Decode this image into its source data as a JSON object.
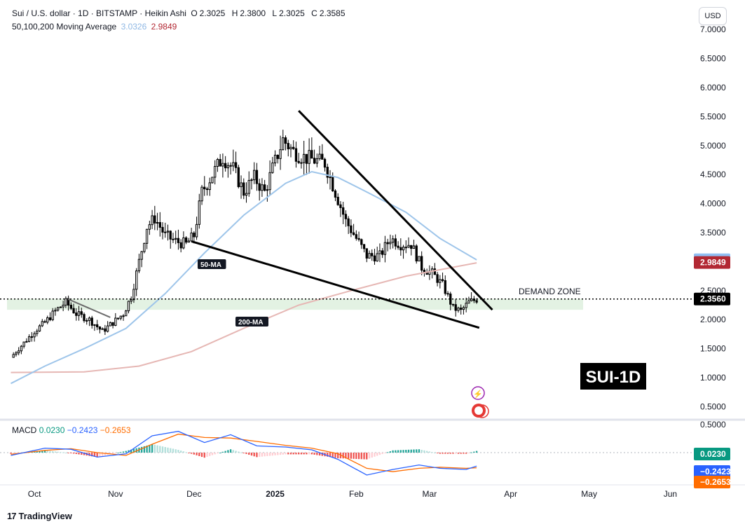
{
  "header": {
    "symbol": "Sui / U.S. dollar · 1D · BITSTAMP · Heikin Ashi",
    "open_label": "O",
    "open": "2.3025",
    "high_label": "H",
    "high": "2.3800",
    "low_label": "L",
    "low": "2.3025",
    "close_label": "C",
    "close": "2.3585",
    "ma_label": "50,100,200 Moving Average",
    "ma_value_1": "3.0326",
    "ma_value_2": "2.9849"
  },
  "currency_button": "USD",
  "macd_legend": {
    "label": "MACD",
    "v1": "0.0230",
    "v2": "−0.2423",
    "v3": "−0.2653"
  },
  "footer": {
    "brand": "TradingView",
    "icon": "tradingview-logo-icon"
  },
  "colors": {
    "up": "#000000",
    "down": "#000000",
    "ma50": "#9ec5ea",
    "ma200": "#e6b7b4",
    "demand": "#e3f2e3",
    "macd": "#2962ff",
    "signal": "#ff6d00",
    "hist_up": "#26a69a",
    "hist_down": "#ef5350",
    "ma200_badge": "#b22833",
    "ma50_badge": "#90bff3"
  },
  "chart_data": {
    "type": "candlestick",
    "variant": "Heikin Ashi",
    "price_axis_ticks": [
      "7.0000",
      "6.5000",
      "6.0000",
      "5.5000",
      "5.0000",
      "4.5000",
      "4.0000",
      "3.5000",
      "3.0000",
      "2.5000",
      "2.0000",
      "1.5000",
      "1.0000",
      "0.5000"
    ],
    "macd_axis_ticks": [
      "0.5000"
    ],
    "time_axis_ticks": [
      "Oct",
      "Nov",
      "Dec",
      "2025",
      "Feb",
      "Mar",
      "Apr",
      "May",
      "Jun"
    ],
    "price_range": [
      0.3,
      7.05
    ],
    "price_labels": {
      "ma50": "3.0326",
      "ma200": "2.9849",
      "last": "2.3560",
      "macd": "0.0230",
      "macd_line": "−0.2423",
      "signal_line": "−0.2653"
    },
    "annotations": {
      "title": "SUI-1D",
      "demand_zone": "DEMAND ZONE",
      "ma50_tag": "50-MA",
      "ma200_tag": "200-MA",
      "demand_zone_range": [
        2.17,
        2.36
      ]
    },
    "trendlines": [
      {
        "name": "upper-wedge-line",
        "from": [
          "2025-01-10",
          5.6
        ],
        "to": [
          "2025-03-25",
          2.17
        ]
      },
      {
        "name": "lower-wedge-line",
        "from": [
          "2024-11-30",
          3.35
        ],
        "to": [
          "2025-03-20",
          1.86
        ]
      },
      {
        "name": "prior-flag-line",
        "from": [
          "2024-10-13",
          2.37
        ],
        "to": [
          "2024-10-30",
          2.04
        ]
      }
    ],
    "keypoints": [
      [
        "2024-09-22",
        1.35
      ],
      [
        "2024-09-26",
        1.55
      ],
      [
        "2024-10-01",
        1.8
      ],
      [
        "2024-10-05",
        1.95
      ],
      [
        "2024-10-09",
        2.15
      ],
      [
        "2024-10-13",
        2.3
      ],
      [
        "2024-10-17",
        2.1
      ],
      [
        "2024-10-22",
        2.0
      ],
      [
        "2024-10-27",
        1.8
      ],
      [
        "2024-10-31",
        1.95
      ],
      [
        "2024-11-04",
        2.1
      ],
      [
        "2024-11-07",
        2.4
      ],
      [
        "2024-11-10",
        3.0
      ],
      [
        "2024-11-13",
        3.6
      ],
      [
        "2024-11-16",
        3.75
      ],
      [
        "2024-11-20",
        3.45
      ],
      [
        "2024-11-24",
        3.35
      ],
      [
        "2024-11-28",
        3.3
      ],
      [
        "2024-12-01",
        3.45
      ],
      [
        "2024-12-04",
        4.2
      ],
      [
        "2024-12-08",
        4.5
      ],
      [
        "2024-12-12",
        4.8
      ],
      [
        "2024-12-16",
        4.6
      ],
      [
        "2024-12-20",
        4.2
      ],
      [
        "2024-12-24",
        4.45
      ],
      [
        "2024-12-28",
        4.2
      ],
      [
        "2024-12-31",
        4.6
      ],
      [
        "2025-01-04",
        5.1
      ],
      [
        "2025-01-08",
        4.9
      ],
      [
        "2025-01-12",
        4.8
      ],
      [
        "2025-01-16",
        4.75
      ],
      [
        "2025-01-20",
        4.7
      ],
      [
        "2025-01-24",
        4.2
      ],
      [
        "2025-01-28",
        3.7
      ],
      [
        "2025-02-01",
        3.4
      ],
      [
        "2025-02-05",
        3.1
      ],
      [
        "2025-02-10",
        3.1
      ],
      [
        "2025-02-14",
        3.4
      ],
      [
        "2025-02-18",
        3.3
      ],
      [
        "2025-02-22",
        3.3
      ],
      [
        "2025-02-26",
        2.9
      ],
      [
        "2025-03-02",
        2.8
      ],
      [
        "2025-03-06",
        2.6
      ],
      [
        "2025-03-10",
        2.2
      ],
      [
        "2025-03-13",
        2.15
      ],
      [
        "2025-03-16",
        2.3
      ],
      [
        "2025-03-19",
        2.35
      ]
    ],
    "ma50": [
      [
        "2024-09-22",
        0.9
      ],
      [
        "2024-10-05",
        1.2
      ],
      [
        "2024-10-20",
        1.5
      ],
      [
        "2024-11-05",
        1.85
      ],
      [
        "2024-11-20",
        2.45
      ],
      [
        "2024-12-05",
        3.15
      ],
      [
        "2024-12-20",
        3.8
      ],
      [
        "2025-01-05",
        4.35
      ],
      [
        "2025-01-15",
        4.55
      ],
      [
        "2025-01-25",
        4.45
      ],
      [
        "2025-02-05",
        4.2
      ],
      [
        "2025-02-20",
        3.85
      ],
      [
        "2025-03-05",
        3.4
      ],
      [
        "2025-03-19",
        3.03
      ]
    ],
    "ma200": [
      [
        "2024-09-22",
        1.09
      ],
      [
        "2024-10-20",
        1.1
      ],
      [
        "2024-11-10",
        1.2
      ],
      [
        "2024-11-30",
        1.45
      ],
      [
        "2024-12-20",
        1.85
      ],
      [
        "2025-01-10",
        2.25
      ],
      [
        "2025-01-30",
        2.5
      ],
      [
        "2025-02-20",
        2.75
      ],
      [
        "2025-03-19",
        2.98
      ]
    ],
    "macd_panel": {
      "macd_line": [
        [
          "2024-09-22",
          -0.05
        ],
        [
          "2024-10-05",
          0.08
        ],
        [
          "2024-10-15",
          0.06
        ],
        [
          "2024-10-25",
          -0.08
        ],
        [
          "2024-11-05",
          -0.02
        ],
        [
          "2024-11-15",
          0.3
        ],
        [
          "2024-11-25",
          0.38
        ],
        [
          "2024-12-05",
          0.18
        ],
        [
          "2024-12-15",
          0.32
        ],
        [
          "2024-12-25",
          0.12
        ],
        [
          "2025-01-05",
          0.1
        ],
        [
          "2025-01-15",
          0.05
        ],
        [
          "2025-01-25",
          -0.12
        ],
        [
          "2025-02-05",
          -0.4
        ],
        [
          "2025-02-15",
          -0.3
        ],
        [
          "2025-02-25",
          -0.22
        ],
        [
          "2025-03-05",
          -0.28
        ],
        [
          "2025-03-15",
          -0.3
        ],
        [
          "2025-03-19",
          -0.24
        ]
      ],
      "signal_line": [
        [
          "2024-09-22",
          -0.03
        ],
        [
          "2024-10-05",
          0.04
        ],
        [
          "2024-10-15",
          0.07
        ],
        [
          "2024-10-25",
          0.0
        ],
        [
          "2024-11-05",
          -0.05
        ],
        [
          "2024-11-15",
          0.15
        ],
        [
          "2024-11-25",
          0.33
        ],
        [
          "2024-12-05",
          0.27
        ],
        [
          "2024-12-15",
          0.26
        ],
        [
          "2024-12-25",
          0.2
        ],
        [
          "2025-01-05",
          0.13
        ],
        [
          "2025-01-15",
          0.08
        ],
        [
          "2025-01-25",
          -0.02
        ],
        [
          "2025-02-05",
          -0.28
        ],
        [
          "2025-02-15",
          -0.34
        ],
        [
          "2025-02-25",
          -0.28
        ],
        [
          "2025-03-05",
          -0.26
        ],
        [
          "2025-03-15",
          -0.28
        ],
        [
          "2025-03-19",
          -0.27
        ]
      ],
      "range": [
        -0.55,
        0.55
      ]
    }
  }
}
